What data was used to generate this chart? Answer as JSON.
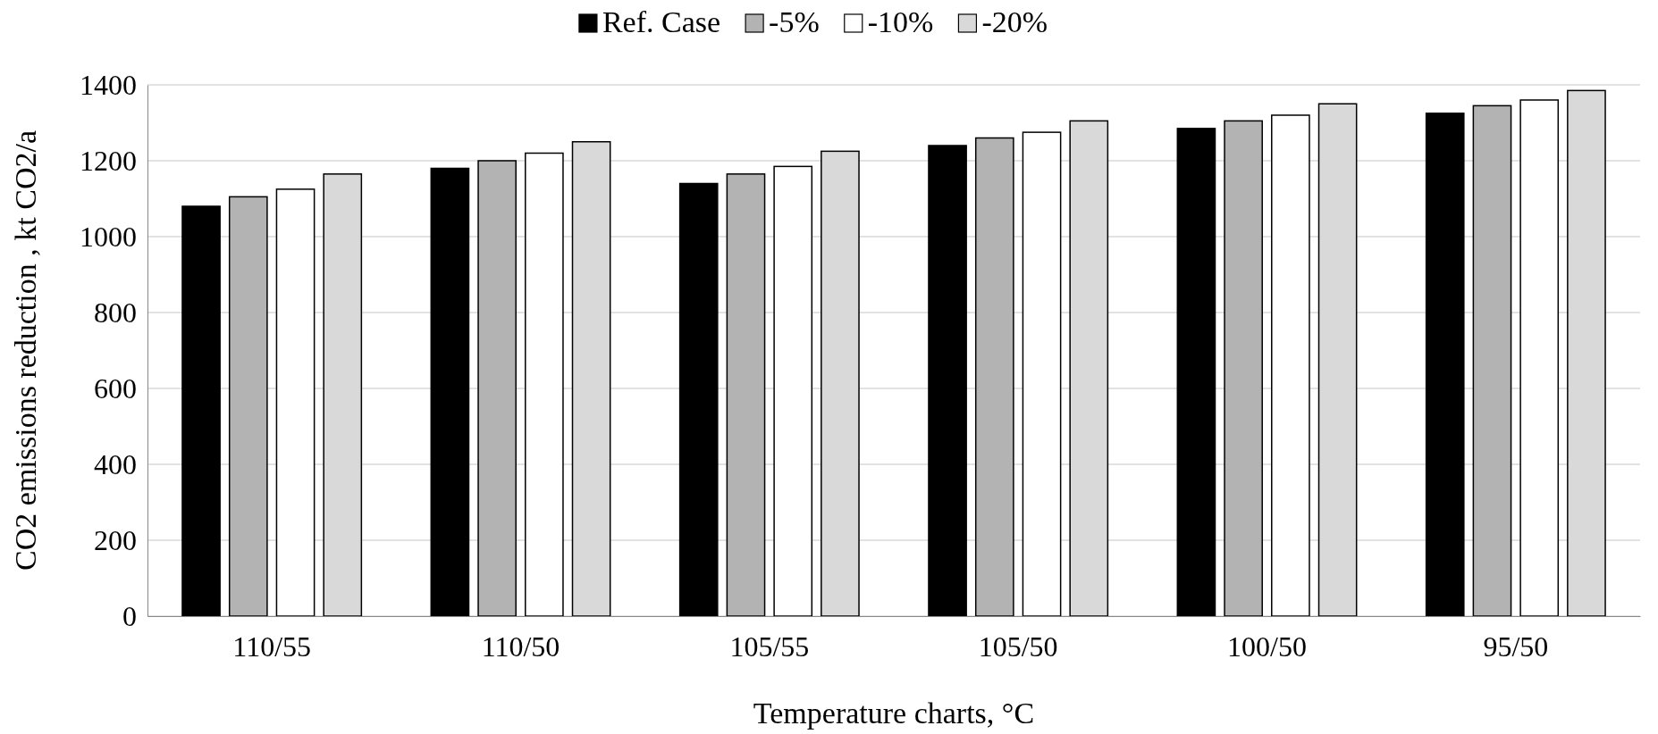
{
  "chart_data": {
    "type": "bar",
    "xlabel": "Temperature charts, °C",
    "ylabel": "CO2 emissions reduction , kt CO2/a",
    "categories": [
      "110/55",
      "110/50",
      "105/55",
      "105/50",
      "100/50",
      "95/50"
    ],
    "series": [
      {
        "name": "Ref. Case",
        "color": "#000000",
        "values": [
          1080,
          1180,
          1140,
          1240,
          1285,
          1325
        ]
      },
      {
        "name": "-5%",
        "color": "#b3b3b3",
        "values": [
          1105,
          1200,
          1165,
          1260,
          1305,
          1345
        ]
      },
      {
        "name": "-10%",
        "color": "#ffffff",
        "values": [
          1125,
          1220,
          1185,
          1275,
          1320,
          1360
        ]
      },
      {
        "name": "-20%",
        "color": "#d9d9d9",
        "values": [
          1165,
          1250,
          1225,
          1305,
          1350,
          1385
        ]
      }
    ],
    "ylim": [
      0,
      1400
    ],
    "yticks": [
      0,
      200,
      400,
      600,
      800,
      1000,
      1200,
      1400
    ],
    "grid": "y",
    "legend": "top"
  }
}
